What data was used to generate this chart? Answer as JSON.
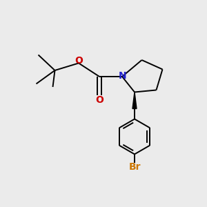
{
  "background_color": "#ebebeb",
  "bond_color": "#000000",
  "N_color": "#2222cc",
  "O_color": "#cc0000",
  "Br_color": "#cc7700",
  "line_width": 1.4,
  "font_size_atom": 10,
  "xlim": [
    0,
    10
  ],
  "ylim": [
    0,
    10
  ]
}
